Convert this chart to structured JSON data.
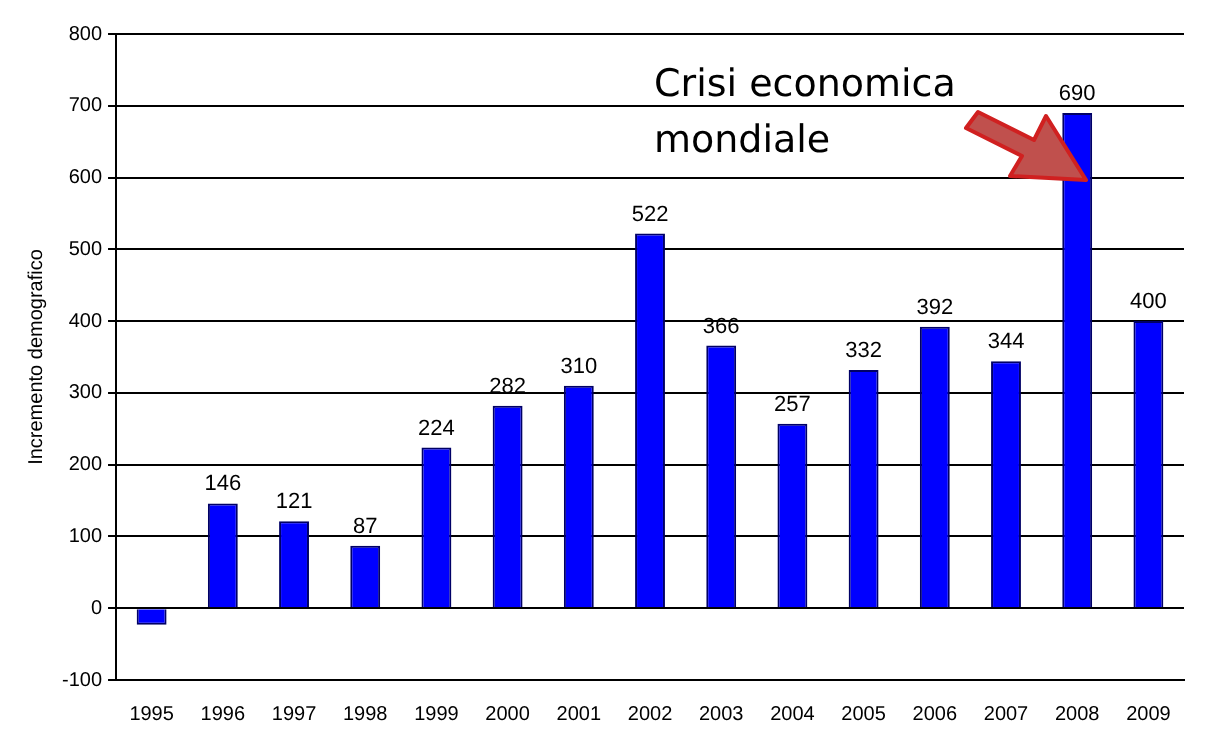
{
  "chart_data": {
    "type": "bar",
    "ylabel": "Incremento demografico",
    "categories": [
      "1995",
      "1996",
      "1997",
      "1998",
      "1999",
      "2000",
      "2001",
      "2002",
      "2003",
      "2004",
      "2005",
      "2006",
      "2007",
      "2008",
      "2009"
    ],
    "values": [
      -23,
      146,
      121,
      87,
      224,
      282,
      310,
      522,
      366,
      257,
      332,
      392,
      344,
      690,
      400
    ],
    "value_labels": [
      null,
      "146",
      "121",
      "87",
      "224",
      "282",
      "310",
      "522",
      "366",
      "257",
      "332",
      "392",
      "344",
      "690",
      "400"
    ],
    "color": "#0000ff",
    "ylim": [
      -100,
      800
    ],
    "yticks": [
      -100,
      0,
      100,
      200,
      300,
      400,
      500,
      600,
      700,
      800
    ],
    "grid": "y",
    "annotations": [
      "Crisi economica mondiale"
    ]
  }
}
